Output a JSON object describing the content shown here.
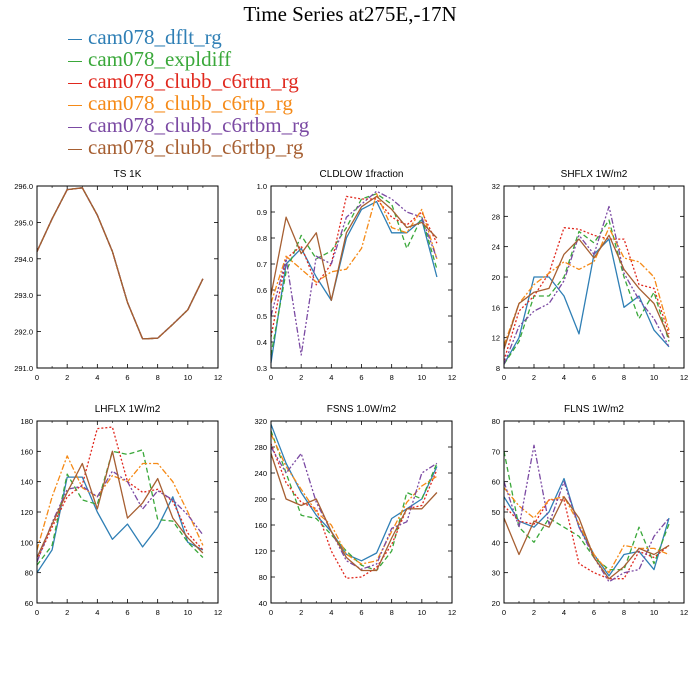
{
  "title": "Time Series at275E,-17N",
  "chart_data": [
    {
      "type": "line",
      "title": "TS   1K",
      "xlim": [
        0,
        12
      ],
      "xticks": [
        0,
        2,
        4,
        6,
        8,
        10,
        12
      ],
      "ylim": [
        291.0,
        296.0
      ],
      "yticks": [
        "291.0",
        "292.0",
        "293.0",
        "294.0",
        "295.0",
        "296.0"
      ],
      "x": [
        0,
        1,
        2,
        3,
        4,
        5,
        6,
        7,
        8,
        9,
        10,
        11
      ],
      "series": [
        {
          "name": "cam078_dflt_rg",
          "values": [
            294.2,
            295.1,
            295.9,
            295.95,
            295.2,
            294.2,
            292.8,
            291.8,
            291.82,
            292.2,
            292.6,
            293.45
          ]
        },
        {
          "name": "cam078_expldiff",
          "values": [
            294.2,
            295.1,
            295.9,
            295.95,
            295.2,
            294.2,
            292.8,
            291.8,
            291.82,
            292.2,
            292.6,
            293.45
          ]
        },
        {
          "name": "cam078_clubb_c6rtm_rg",
          "values": [
            294.2,
            295.1,
            295.9,
            295.95,
            295.2,
            294.2,
            292.8,
            291.8,
            291.82,
            292.2,
            292.6,
            293.45
          ]
        },
        {
          "name": "cam078_clubb_c6rtp_rg",
          "values": [
            294.2,
            295.1,
            295.9,
            295.95,
            295.2,
            294.2,
            292.8,
            291.8,
            291.82,
            292.2,
            292.6,
            293.45
          ]
        },
        {
          "name": "cam078_clubb_c6rtbm_rg",
          "values": [
            294.2,
            295.1,
            295.9,
            295.95,
            295.2,
            294.2,
            292.8,
            291.8,
            291.82,
            292.2,
            292.6,
            293.45
          ]
        },
        {
          "name": "cam078_clubb_c6rtbp_rg",
          "values": [
            294.2,
            295.1,
            295.9,
            295.95,
            295.2,
            294.2,
            292.8,
            291.8,
            291.82,
            292.2,
            292.6,
            293.45
          ]
        }
      ]
    },
    {
      "type": "line",
      "title": "CLDLOW   1fraction",
      "xlim": [
        0,
        12
      ],
      "xticks": [
        0,
        2,
        4,
        6,
        8,
        10,
        12
      ],
      "ylim": [
        0.3,
        1.0
      ],
      "yticks": [
        "0.3",
        "0.4",
        "0.5",
        "0.6",
        "0.7",
        "0.8",
        "0.9",
        "1.0"
      ],
      "x": [
        0,
        1,
        2,
        3,
        4,
        5,
        6,
        7,
        8,
        9,
        10,
        11
      ],
      "series": [
        {
          "name": "cam078_dflt_rg",
          "values": [
            0.32,
            0.7,
            0.76,
            0.65,
            0.56,
            0.8,
            0.91,
            0.94,
            0.82,
            0.82,
            0.87,
            0.65
          ]
        },
        {
          "name": "cam078_expldiff",
          "values": [
            0.35,
            0.67,
            0.81,
            0.72,
            0.75,
            0.84,
            0.95,
            0.97,
            0.93,
            0.76,
            0.88,
            0.68
          ]
        },
        {
          "name": "cam078_clubb_c6rtm_rg",
          "values": [
            0.42,
            0.72,
            0.77,
            0.62,
            0.7,
            0.96,
            0.95,
            0.95,
            0.88,
            0.85,
            0.9,
            0.78
          ]
        },
        {
          "name": "cam078_clubb_c6rtp_rg",
          "values": [
            0.55,
            0.73,
            0.68,
            0.63,
            0.67,
            0.68,
            0.76,
            0.97,
            0.84,
            0.82,
            0.91,
            0.72
          ]
        },
        {
          "name": "cam078_clubb_c6rtbm_rg",
          "values": [
            0.5,
            0.72,
            0.35,
            0.73,
            0.7,
            0.88,
            0.93,
            0.98,
            0.95,
            0.9,
            0.88,
            0.72
          ]
        },
        {
          "name": "cam078_clubb_c6rtbp_rg",
          "values": [
            0.58,
            0.88,
            0.74,
            0.82,
            0.56,
            0.82,
            0.92,
            0.96,
            0.91,
            0.84,
            0.86,
            0.8
          ]
        }
      ]
    },
    {
      "type": "line",
      "title": "SHFLX   1W/m2",
      "xlim": [
        0,
        12
      ],
      "xticks": [
        0,
        2,
        4,
        6,
        8,
        10,
        12
      ],
      "ylim": [
        8,
        32
      ],
      "yticks": [
        "8",
        "12",
        "16",
        "20",
        "24",
        "28",
        "32"
      ],
      "x": [
        0,
        1,
        2,
        3,
        4,
        5,
        6,
        7,
        8,
        9,
        10,
        11
      ],
      "series": [
        {
          "name": "cam078_dflt_rg",
          "values": [
            8.5,
            12.0,
            20.0,
            20.0,
            17.5,
            12.5,
            23.0,
            25.0,
            16.0,
            17.5,
            13.0,
            10.8
          ]
        },
        {
          "name": "cam078_expldiff",
          "values": [
            8.5,
            11.5,
            17.5,
            17.5,
            20.0,
            26.0,
            24.5,
            27.5,
            20.0,
            14.5,
            18.0,
            11.5
          ]
        },
        {
          "name": "cam078_clubb_c6rtm_rg",
          "values": [
            9.0,
            15.5,
            17.5,
            20.5,
            26.5,
            26.3,
            25.5,
            25.0,
            25.0,
            19.0,
            18.5,
            12.5
          ]
        },
        {
          "name": "cam078_clubb_c6rtp_rg",
          "values": [
            11.0,
            16.5,
            19.0,
            20.5,
            22.0,
            21.0,
            22.0,
            26.5,
            22.5,
            22.0,
            20.0,
            13.0
          ]
        },
        {
          "name": "cam078_clubb_c6rtbm_rg",
          "values": [
            8.5,
            13.5,
            15.5,
            16.5,
            19.5,
            25.5,
            23.0,
            29.3,
            20.5,
            17.0,
            14.5,
            10.8
          ]
        },
        {
          "name": "cam078_clubb_c6rtbp_rg",
          "values": [
            10.5,
            16.5,
            18.0,
            18.5,
            23.0,
            25.0,
            22.5,
            25.5,
            21.0,
            18.5,
            16.5,
            12.0
          ]
        }
      ]
    },
    {
      "type": "line",
      "title": "LHFLX   1W/m2",
      "xlim": [
        0,
        12
      ],
      "xticks": [
        0,
        2,
        4,
        6,
        8,
        10,
        12
      ],
      "ylim": [
        60,
        180
      ],
      "yticks": [
        "60",
        "80",
        "100",
        "120",
        "140",
        "160",
        "180"
      ],
      "x": [
        0,
        1,
        2,
        3,
        4,
        5,
        6,
        7,
        8,
        9,
        10,
        11
      ],
      "series": [
        {
          "name": "cam078_dflt_rg",
          "values": [
            80,
            95,
            143,
            143,
            120,
            102,
            112,
            97,
            110,
            130,
            100,
            95
          ]
        },
        {
          "name": "cam078_expldiff",
          "values": [
            85,
            98,
            145,
            128,
            125,
            160,
            158,
            161,
            115,
            114,
            100,
            90
          ]
        },
        {
          "name": "cam078_clubb_c6rtm_rg",
          "values": [
            88,
            110,
            130,
            138,
            175,
            176,
            140,
            133,
            135,
            127,
            106,
            95
          ]
        },
        {
          "name": "cam078_clubb_c6rtp_rg",
          "values": [
            95,
            130,
            157,
            136,
            130,
            144,
            140,
            152,
            152,
            140,
            120,
            98
          ]
        },
        {
          "name": "cam078_clubb_c6rtbm_rg",
          "values": [
            87,
            113,
            135,
            137,
            130,
            147,
            140,
            122,
            134,
            128,
            118,
            105
          ]
        },
        {
          "name": "cam078_clubb_c6rtbp_rg",
          "values": [
            90,
            112,
            133,
            152,
            122,
            160,
            116,
            126,
            142,
            116,
            103,
            93
          ]
        }
      ]
    },
    {
      "type": "line",
      "title": "FSNS   1.0W/m2",
      "xlim": [
        0,
        12
      ],
      "xticks": [
        0,
        2,
        4,
        6,
        8,
        10,
        12
      ],
      "ylim": [
        40,
        320
      ],
      "yticks": [
        "40",
        "80",
        "120",
        "160",
        "200",
        "240",
        "280",
        "320"
      ],
      "x": [
        0,
        1,
        2,
        3,
        4,
        5,
        6,
        7,
        8,
        9,
        10,
        11
      ],
      "series": [
        {
          "name": "cam078_dflt_rg",
          "values": [
            315,
            255,
            210,
            175,
            150,
            115,
            105,
            117,
            170,
            185,
            200,
            250
          ]
        },
        {
          "name": "cam078_expldiff",
          "values": [
            305,
            240,
            175,
            170,
            145,
            120,
            98,
            90,
            120,
            210,
            200,
            255
          ]
        },
        {
          "name": "cam078_clubb_c6rtm_rg",
          "values": [
            285,
            225,
            195,
            185,
            120,
            78,
            80,
            95,
            130,
            185,
            190,
            245
          ]
        },
        {
          "name": "cam078_clubb_c6rtp_rg",
          "values": [
            300,
            250,
            215,
            180,
            160,
            115,
            100,
            105,
            150,
            195,
            220,
            235
          ]
        },
        {
          "name": "cam078_clubb_c6rtbm_rg",
          "values": [
            280,
            240,
            270,
            195,
            150,
            105,
            92,
            100,
            155,
            165,
            240,
            255
          ]
        },
        {
          "name": "cam078_clubb_c6rtbp_rg",
          "values": [
            270,
            200,
            190,
            200,
            150,
            110,
            90,
            90,
            140,
            185,
            185,
            210
          ]
        }
      ]
    },
    {
      "type": "line",
      "title": "FLNS   1W/m2",
      "xlim": [
        0,
        12
      ],
      "xticks": [
        0,
        2,
        4,
        6,
        8,
        10,
        12
      ],
      "ylim": [
        20,
        80
      ],
      "yticks": [
        "20",
        "30",
        "40",
        "50",
        "60",
        "70",
        "80"
      ],
      "x": [
        0,
        1,
        2,
        3,
        4,
        5,
        6,
        7,
        8,
        9,
        10,
        11
      ],
      "series": [
        {
          "name": "cam078_dflt_rg",
          "values": [
            55,
            47,
            45,
            50,
            61,
            45,
            36,
            29,
            36,
            37,
            31,
            48
          ]
        },
        {
          "name": "cam078_expldiff",
          "values": [
            70,
            45,
            40,
            48,
            45,
            42,
            35,
            31,
            31,
            45,
            33,
            46
          ]
        },
        {
          "name": "cam078_clubb_c6rtm_rg",
          "values": [
            52,
            47,
            46,
            54,
            54,
            33,
            30,
            28,
            28,
            37,
            35,
            39
          ]
        },
        {
          "name": "cam078_clubb_c6rtp_rg",
          "values": [
            58,
            52,
            48,
            54,
            55,
            46,
            36,
            30,
            39,
            38,
            38,
            36
          ]
        },
        {
          "name": "cam078_clubb_c6rtbm_rg",
          "values": [
            60,
            45,
            72,
            46,
            60,
            45,
            35,
            27,
            30,
            31,
            42,
            48
          ]
        },
        {
          "name": "cam078_clubb_c6rtbp_rg",
          "values": [
            48,
            36,
            47,
            45,
            55,
            48,
            35,
            28,
            32,
            38,
            36,
            39
          ]
        }
      ]
    }
  ],
  "legend": [
    {
      "label": "cam078_dflt_rg",
      "color": "#2f7fb5",
      "dash": ""
    },
    {
      "label": "cam078_expldiff",
      "color": "#3aa83a",
      "dash": "5,3"
    },
    {
      "label": "cam078_clubb_c6rtm_rg",
      "color": "#e0281e",
      "dash": "2,2"
    },
    {
      "label": "cam078_clubb_c6rtp_rg",
      "color": "#f58a17",
      "dash": "6,2,2,2"
    },
    {
      "label": "cam078_clubb_c6rtbm_rg",
      "color": "#7b4aa3",
      "dash": "6,2,2,2,2,2"
    },
    {
      "label": "cam078_clubb_c6rtbp_rg",
      "color": "#a65f32",
      "dash": ""
    }
  ]
}
